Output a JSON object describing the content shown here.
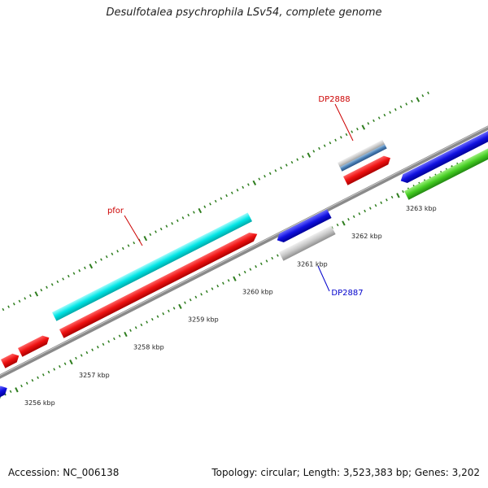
{
  "map": {
    "title": "Desulfotalea psychrophila LSv54, complete genome",
    "accession": "Accession: NC_006138",
    "summary": "Topology: circular; Length: 3,523,383 bp; Genes: 3,202"
  },
  "ticks": [
    {
      "label": "3256 kbp",
      "kbp": 3256
    },
    {
      "label": "3257 kbp",
      "kbp": 3257
    },
    {
      "label": "3258 kbp",
      "kbp": 3258
    },
    {
      "label": "3259 kbp",
      "kbp": 3259
    },
    {
      "label": "3260 kbp",
      "kbp": 3260
    },
    {
      "label": "3261 kbp",
      "kbp": 3261
    },
    {
      "label": "3262 kbp",
      "kbp": 3262
    },
    {
      "label": "3263 kbp",
      "kbp": 3263
    }
  ],
  "gene_labels": {
    "pfor": "pfor",
    "dp2888": "DP2888",
    "dp2887": "DP2887"
  },
  "colors": {
    "backbone": "#8a8a8a",
    "ticks": "#2e7d1e",
    "cds_forward": "#ee1111",
    "rrna": "#00e5e5",
    "cds_reverse": "#1010e0",
    "gene_other": "#c8c8c8",
    "trna": "#44cc22",
    "label_red": "#cc0000",
    "label_blue": "#0000cc"
  }
}
